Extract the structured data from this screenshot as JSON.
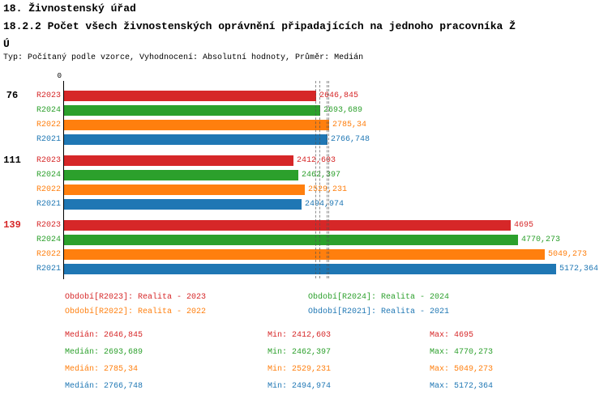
{
  "header": {
    "line1": "18. Živnostenský úřad",
    "line2": "18.2.2 Počet všech živnostenských oprávnění připadajících na jednoho pracovníka Ž",
    "line3": "Ú",
    "meta": "Typ: Počítaný podle vzorce, Vyhodnocení: Absolutní hodnoty, Průměr: Medián"
  },
  "colors": {
    "R2023": "#d62728",
    "R2024": "#2ca02c",
    "R2022": "#ff7f0e",
    "R2021": "#1f77b4",
    "axis": "#000000",
    "median_line": "#505050",
    "highlight_group_label": "#d62728",
    "normal_group_label": "#000000"
  },
  "chart_data": {
    "type": "bar",
    "orientation": "horizontal",
    "axis_origin_label": "0",
    "x_min": 0,
    "average_type": "Medián",
    "series_order": [
      "R2023",
      "R2024",
      "R2022",
      "R2021"
    ],
    "median_values": [
      2646.845,
      2693.689,
      2785.34,
      2766.748
    ],
    "groups": [
      {
        "label": "76",
        "highlighted": false,
        "bars": [
          {
            "series": "R2023",
            "value": 2646.845,
            "display": "2646,845"
          },
          {
            "series": "R2024",
            "value": 2693.689,
            "display": "2693,689"
          },
          {
            "series": "R2022",
            "value": 2785.34,
            "display": "2785,34"
          },
          {
            "series": "R2021",
            "value": 2766.748,
            "display": "2766,748"
          }
        ]
      },
      {
        "label": "111",
        "highlighted": false,
        "bars": [
          {
            "series": "R2023",
            "value": 2412.603,
            "display": "2412,603"
          },
          {
            "series": "R2024",
            "value": 2462.397,
            "display": "2462,397"
          },
          {
            "series": "R2022",
            "value": 2529.231,
            "display": "2529,231"
          },
          {
            "series": "R2021",
            "value": 2494.974,
            "display": "2494,974"
          }
        ]
      },
      {
        "label": "139",
        "highlighted": true,
        "bars": [
          {
            "series": "R2023",
            "value": 4695,
            "display": "4695"
          },
          {
            "series": "R2024",
            "value": 4770.273,
            "display": "4770,273"
          },
          {
            "series": "R2022",
            "value": 5049.273,
            "display": "5049,273"
          },
          {
            "series": "R2021",
            "value": 5172.364,
            "display": "5172,364"
          }
        ]
      }
    ]
  },
  "legend": {
    "items": [
      {
        "series": "R2023",
        "label": "Období[R2023]: Realita - 2023"
      },
      {
        "series": "R2024",
        "label": "Období[R2024]: Realita - 2024"
      },
      {
        "series": "R2022",
        "label": "Období[R2022]: Realita - 2022"
      },
      {
        "series": "R2021",
        "label": "Období[R2021]: Realita - 2021"
      }
    ]
  },
  "stats": {
    "rows": [
      {
        "series": "R2023",
        "median": "Medián: 2646,845",
        "min": "Min: 2412,603",
        "max": "Max: 4695"
      },
      {
        "series": "R2024",
        "median": "Medián: 2693,689",
        "min": "Min: 2462,397",
        "max": "Max: 4770,273"
      },
      {
        "series": "R2022",
        "median": "Medián: 2785,34",
        "min": "Min: 2529,231",
        "max": "Max: 5049,273"
      },
      {
        "series": "R2021",
        "median": "Medián: 2766,748",
        "min": "Min: 2494,974",
        "max": "Max: 5172,364"
      }
    ]
  }
}
